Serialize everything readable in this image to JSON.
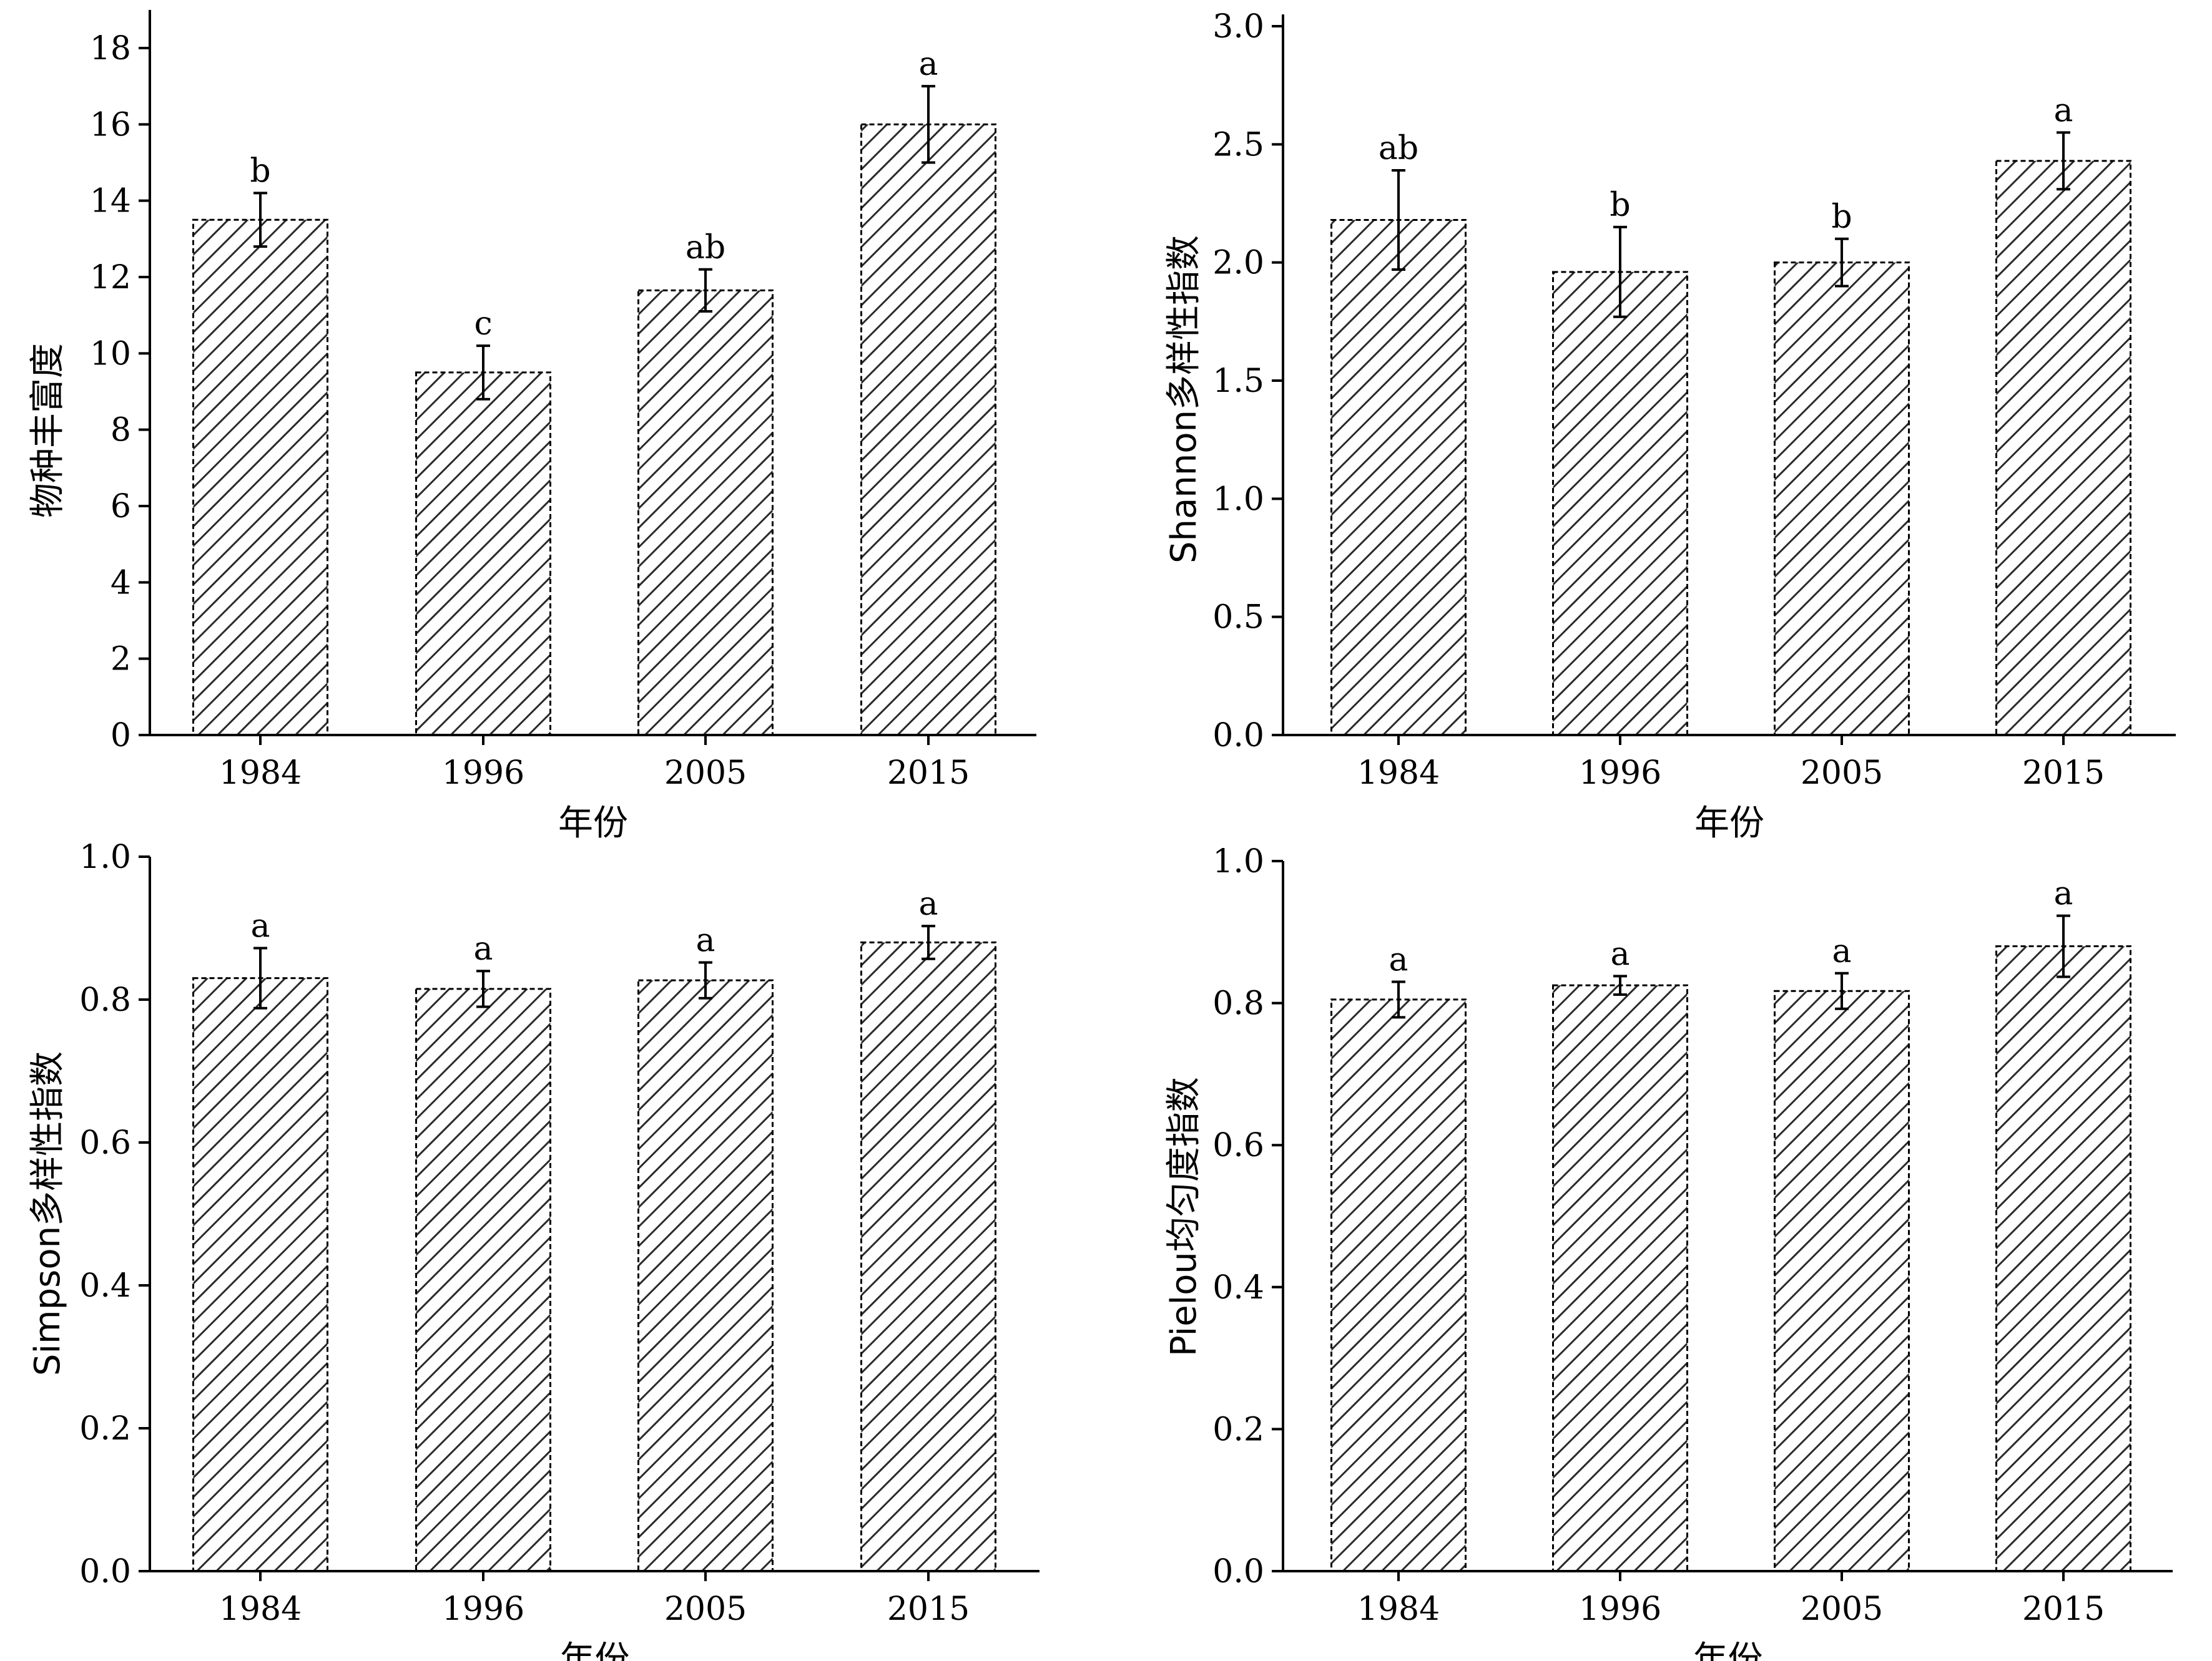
{
  "chart_data": [
    {
      "type": "bar",
      "categories": [
        "1984",
        "1996",
        "2005",
        "2015"
      ],
      "values": [
        13.5,
        9.5,
        11.65,
        16.0
      ],
      "errors": [
        0.7,
        0.7,
        0.55,
        1.0
      ],
      "significance": [
        "b",
        "c",
        "ab",
        "a"
      ],
      "xlabel": "年份",
      "ylabel": "物种丰富度",
      "ylim": [
        0,
        19
      ],
      "yticks": [
        "0",
        "2",
        "4",
        "6",
        "8",
        "10",
        "12",
        "14",
        "16",
        "18"
      ],
      "legend": "none",
      "grid": false,
      "pattern": "diagonal-hatch"
    },
    {
      "type": "bar",
      "categories": [
        "1984",
        "1996",
        "2005",
        "2015"
      ],
      "values": [
        2.18,
        1.96,
        2.0,
        2.43
      ],
      "errors": [
        0.21,
        0.19,
        0.1,
        0.12
      ],
      "significance": [
        "ab",
        "b",
        "b",
        "a"
      ],
      "xlabel": "年份",
      "ylabel": "Shannon多样性指数",
      "ylim": [
        0,
        3.05
      ],
      "yticks": [
        "0.0",
        "0.5",
        "1.0",
        "1.5",
        "2.0",
        "2.5",
        "3.0"
      ],
      "legend": "none",
      "grid": false,
      "pattern": "diagonal-hatch"
    },
    {
      "type": "bar",
      "categories": [
        "1984",
        "1996",
        "2005",
        "2015"
      ],
      "values": [
        0.83,
        0.815,
        0.827,
        0.88
      ],
      "errors": [
        0.042,
        0.025,
        0.025,
        0.023
      ],
      "significance": [
        "a",
        "a",
        "a",
        "a"
      ],
      "xlabel": "年份",
      "ylabel": "Simpson多样性指数",
      "ylim": [
        0,
        1.0
      ],
      "yticks": [
        "0.0",
        "0.2",
        "0.4",
        "0.6",
        "0.8",
        "1.0"
      ],
      "legend": "none",
      "grid": false,
      "pattern": "diagonal-hatch"
    },
    {
      "type": "bar",
      "categories": [
        "1984",
        "1996",
        "2005",
        "2015"
      ],
      "values": [
        0.805,
        0.825,
        0.817,
        0.88
      ],
      "errors": [
        0.025,
        0.013,
        0.025,
        0.043
      ],
      "significance": [
        "a",
        "a",
        "a",
        "a"
      ],
      "xlabel": "年份",
      "ylabel": "Pielou均匀度指数",
      "ylim": [
        0,
        1.0
      ],
      "yticks": [
        "0.0",
        "0.2",
        "0.4",
        "0.6",
        "0.8",
        "1.0"
      ],
      "legend": "none",
      "grid": false,
      "pattern": "diagonal-hatch"
    }
  ]
}
